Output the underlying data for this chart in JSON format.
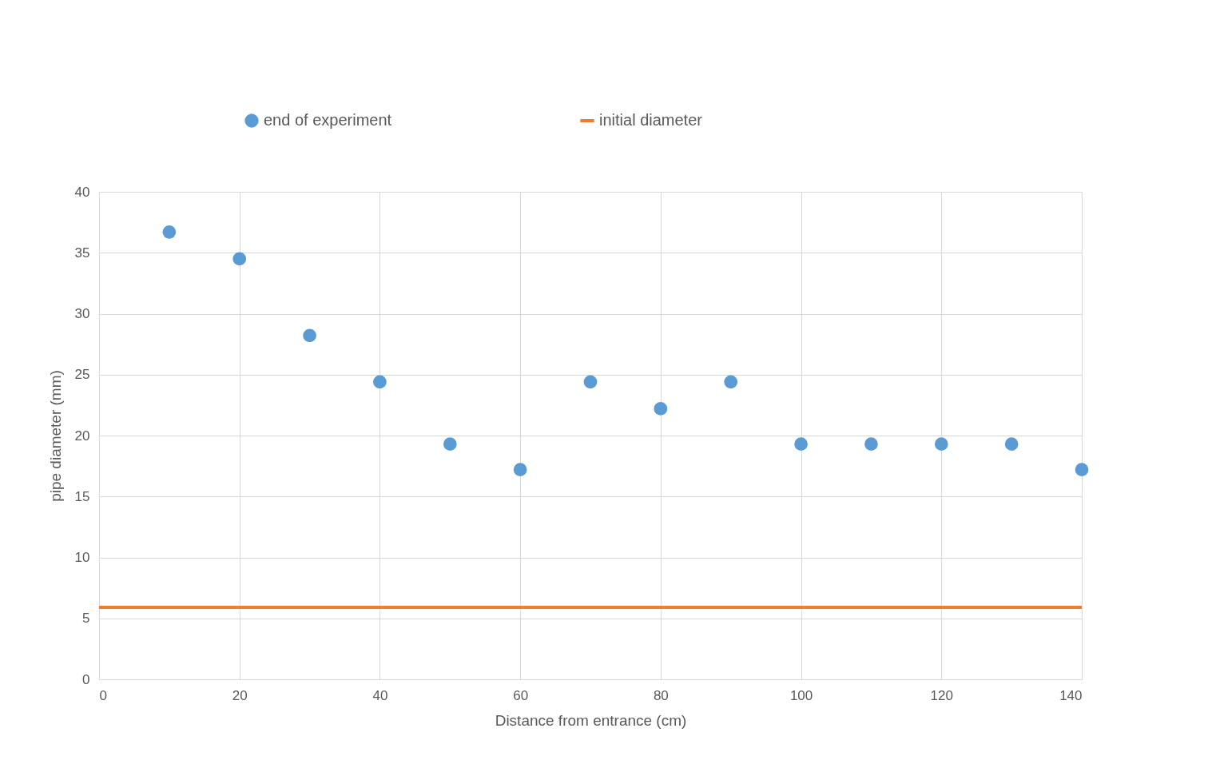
{
  "chart_data": {
    "type": "scatter",
    "xlabel": "Distance from entrance (cm)",
    "ylabel": "pipe diameter (mm)",
    "xlim": [
      0,
      140
    ],
    "xticks": [
      0,
      20,
      40,
      60,
      80,
      100,
      120,
      140
    ],
    "ylim": [
      0,
      40
    ],
    "yticks": [
      0,
      5,
      10,
      15,
      20,
      25,
      30,
      35,
      40
    ],
    "grid": true,
    "legend": "top",
    "marker": "circle",
    "series": [
      {
        "name": "end of experiment",
        "color": "#5b9bd5",
        "x": [
          10,
          20,
          30,
          40,
          50,
          60,
          70,
          80,
          90,
          100,
          110,
          120,
          130,
          140
        ],
        "values": [
          36.7,
          34.5,
          28.2,
          24.4,
          19.3,
          17.2,
          24.4,
          22.2,
          24.4,
          19.3,
          19.3,
          19.3,
          19.3,
          17.2
        ]
      },
      {
        "name": "initial diameter",
        "color": "#ed7d31",
        "type": "line",
        "line_style": "solid",
        "marker": "none",
        "x": [
          0,
          140
        ],
        "values": [
          5.9,
          5.9
        ]
      }
    ]
  }
}
